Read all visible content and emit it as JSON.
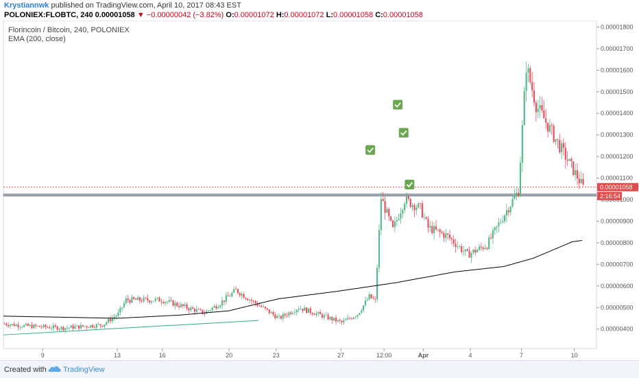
{
  "header": {
    "author": "Krystiannwk",
    "published": "published on TradingView.com, April 10, 2017 08:43 EST",
    "symbol": "POLONIEX:FLOBTC, 240",
    "price": "0.00001058",
    "change_arrow": "▼",
    "change": "−0.00000042 (−3.82%)",
    "ohlc": [
      {
        "label": "O:",
        "value": "0.00001072"
      },
      {
        "label": "H:",
        "value": "0.00001072"
      },
      {
        "label": "L:",
        "value": "0.00001058"
      },
      {
        "label": "C:",
        "value": "0.00001058"
      }
    ]
  },
  "legend": {
    "title": "Florincoin / Bitcoin, 240, POLONIEX",
    "indicator": "EMA (200, close)"
  },
  "footer": {
    "created": "Created with",
    "brand": "TradingView"
  },
  "colors": {
    "up": "#53b987",
    "down": "#eb4d5c",
    "ema": "#000000",
    "trend": "#22b08a",
    "price_label": "#e14d4d",
    "check": "#6aa84f"
  },
  "chart_data": {
    "type": "candlestick",
    "title": "Florincoin / Bitcoin, 240, POLONIEX",
    "indicator": "EMA (200, close)",
    "y_ticks": [
      "0.00001800",
      "0.00001700",
      "0.00001600",
      "0.00001500",
      "0.00001400",
      "0.00001300",
      "0.00001200",
      "0.00001100",
      "0.00001000",
      "0.00000900",
      "0.00000800",
      "0.00000700",
      "0.00000600",
      "0.00000500",
      "0.00000400"
    ],
    "y_tick_values": [
      1800,
      1700,
      1600,
      1500,
      1400,
      1300,
      1200,
      1100,
      1000,
      900,
      800,
      700,
      600,
      500,
      400
    ],
    "ylim": [
      310,
      1830
    ],
    "x_ticks": [
      {
        "label": "9",
        "i": 20
      },
      {
        "label": "13",
        "i": 58
      },
      {
        "label": "16",
        "i": 81
      },
      {
        "label": "20",
        "i": 115
      },
      {
        "label": "23",
        "i": 139
      },
      {
        "label": "27",
        "i": 172
      },
      {
        "label": "12:00",
        "i": 194
      },
      {
        "label": "Apr",
        "i": 214
      },
      {
        "label": "4",
        "i": 238
      },
      {
        "label": "7",
        "i": 264
      },
      {
        "label": "10",
        "i": 291
      }
    ],
    "last_price_label": "0.00001058",
    "countdown_label": "2:16:54",
    "last_price": 1058,
    "horizontal_lines": [
      1025,
      1018
    ],
    "trend_line": {
      "i1": 0,
      "v1": 373,
      "i2": 130,
      "v2": 440
    },
    "check_marks": [
      {
        "i": 187,
        "v": 1230
      },
      {
        "i": 201,
        "v": 1440
      },
      {
        "i": 204,
        "v": 1310
      },
      {
        "i": 207,
        "v": 1070
      }
    ],
    "segments": [
      [
        0,
        425
      ],
      [
        10,
        415
      ],
      [
        30,
        405
      ],
      [
        50,
        420
      ],
      [
        58,
        470
      ],
      [
        62,
        535
      ],
      [
        80,
        535
      ],
      [
        102,
        475
      ],
      [
        110,
        520
      ],
      [
        118,
        580
      ],
      [
        128,
        520
      ],
      [
        140,
        450
      ],
      [
        150,
        500
      ],
      [
        172,
        430
      ],
      [
        180,
        470
      ],
      [
        186,
        550
      ],
      [
        189,
        530
      ],
      [
        192,
        1008
      ],
      [
        198,
        860
      ],
      [
        204,
        1000
      ],
      [
        212,
        960
      ],
      [
        216,
        870
      ],
      [
        226,
        830
      ],
      [
        236,
        745
      ],
      [
        246,
        790
      ],
      [
        256,
        950
      ],
      [
        262,
        1040
      ],
      [
        266,
        1620
      ],
      [
        271,
        1440
      ],
      [
        286,
        1200
      ],
      [
        295,
        1058
      ]
    ],
    "ema": [
      [
        0,
        460
      ],
      [
        30,
        455
      ],
      [
        58,
        450
      ],
      [
        90,
        465
      ],
      [
        115,
        485
      ],
      [
        140,
        540
      ],
      [
        170,
        575
      ],
      [
        200,
        615
      ],
      [
        230,
        665
      ],
      [
        255,
        690
      ],
      [
        270,
        728
      ],
      [
        290,
        805
      ],
      [
        296,
        812
      ]
    ]
  }
}
